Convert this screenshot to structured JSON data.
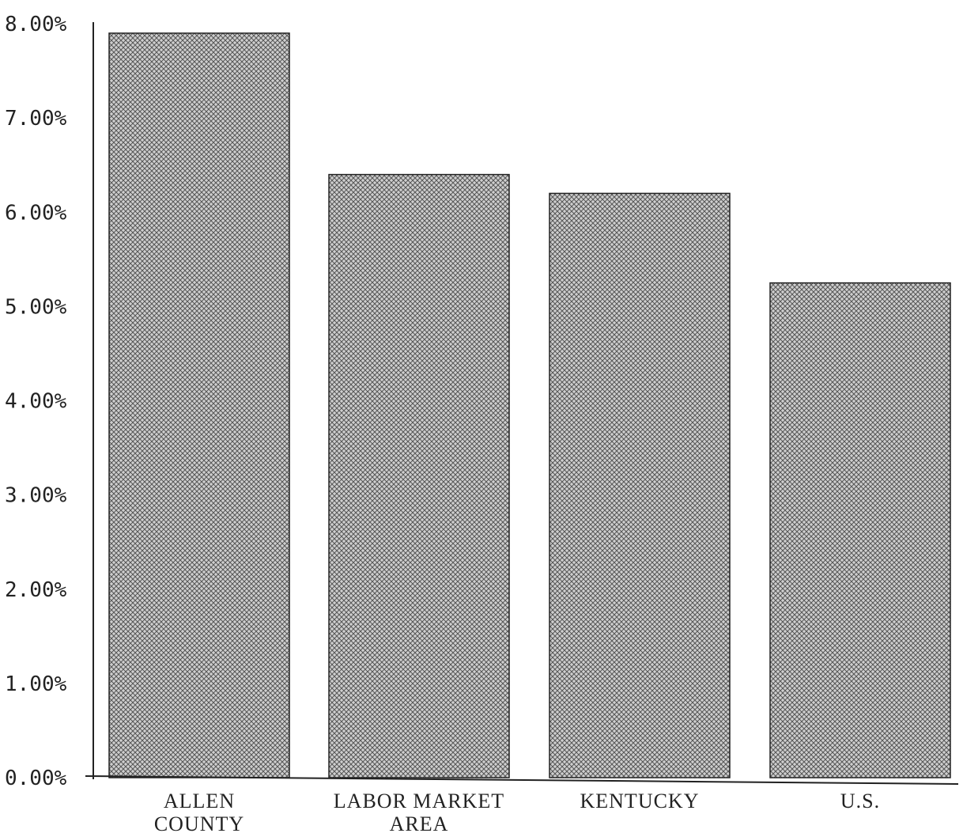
{
  "chart_data": {
    "type": "bar",
    "title": "",
    "xlabel": "",
    "ylabel": "",
    "categories": [
      [
        "ALLEN",
        "COUNTY"
      ],
      [
        "LABOR MARKET",
        "AREA"
      ],
      [
        "KENTUCKY"
      ],
      [
        "U.S."
      ]
    ],
    "values": [
      7.9,
      6.4,
      6.2,
      5.25
    ],
    "ylim": [
      0,
      8
    ],
    "yticks": [
      0,
      1,
      2,
      3,
      4,
      5,
      6,
      7,
      8
    ],
    "ytick_labels": [
      "0.00%",
      "1.00%",
      "2.00%",
      "3.00%",
      "4.00%",
      "5.00%",
      "6.00%",
      "7.00%",
      "8.00%"
    ],
    "grid": false,
    "legend": "none",
    "colors": {
      "bar_fill": "#bdbdbd",
      "hatch": "#555555",
      "outline": "#222222"
    }
  }
}
